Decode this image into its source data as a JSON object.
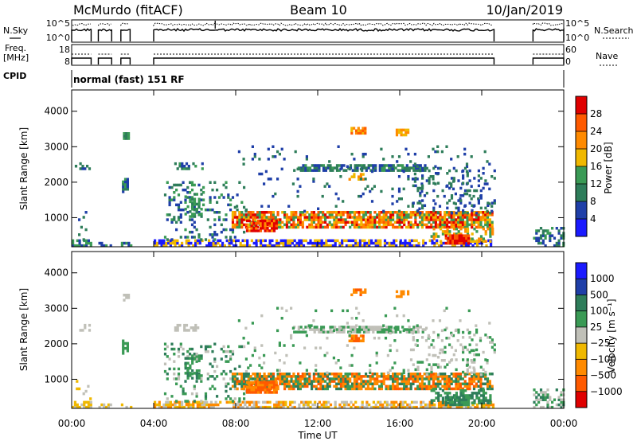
{
  "header": {
    "station": "McMurdo (fitACF)",
    "beam": "Beam 10",
    "date": "10/Jan/2019"
  },
  "side_labels": {
    "nsky": "N.Sky",
    "nsearch": "N.Search",
    "freq_line1": "Freq.",
    "freq_line2": "[MHz]",
    "nave": "Nave",
    "cpid": "CPID"
  },
  "panel_ticks": {
    "noise_left_hi": "10^5",
    "noise_left_lo": "10^0",
    "noise_right_hi": "10^5",
    "noise_right_lo": "10^0",
    "freq_left_hi": "18",
    "freq_left_lo": "8",
    "freq_right_hi": "60",
    "freq_right_lo": "0"
  },
  "cpid_text": "normal (fast) 151 RF",
  "colors": {
    "power": [
      "#1a1aff",
      "#1f3fa8",
      "#2e7d5a",
      "#3a9a55",
      "#f0b800",
      "#ff8a00",
      "#ff5a00",
      "#e00000"
    ],
    "velocity": [
      "#e00000",
      "#ff5a00",
      "#ff8a00",
      "#f0b800",
      "#c0c0b8",
      "#3a9a55",
      "#2e7d5a",
      "#1f3fa8",
      "#1a1aff"
    ]
  },
  "chart_data": [
    {
      "type": "heatmap",
      "name": "power",
      "ylabel": "Slant Range [km]",
      "ylim": [
        180,
        4600
      ],
      "yticks": [
        "1000",
        "2000",
        "3000",
        "4000"
      ],
      "xticks": [
        "00:00",
        "04:00",
        "08:00",
        "12:00",
        "16:00",
        "20:00",
        "00:00"
      ],
      "colorbar_label": "Power [dB]",
      "colorbar_ticks": [
        "4",
        "8",
        "12",
        "16",
        "20",
        "24",
        "28"
      ],
      "data_windows_hours": [
        [
          0.0,
          0.95
        ],
        [
          1.3,
          1.95
        ],
        [
          2.4,
          2.85
        ],
        [
          4.0,
          20.6
        ],
        [
          22.5,
          24.0
        ]
      ]
    },
    {
      "type": "heatmap",
      "name": "velocity",
      "ylabel": "Slant Range [km]",
      "ylim": [
        180,
        4600
      ],
      "yticks": [
        "1000",
        "2000",
        "3000",
        "4000"
      ],
      "xticks": [
        "00:00",
        "04:00",
        "08:00",
        "12:00",
        "16:00",
        "20:00",
        "00:00"
      ],
      "xlabel": "Time UT",
      "colorbar_label": "Velocity [m s⁻¹]",
      "colorbar_ticks": [
        "1000",
        "500",
        "100",
        "25",
        "−25",
        "−100",
        "−500",
        "−1000"
      ],
      "data_windows_hours": [
        [
          0.0,
          0.95
        ],
        [
          1.3,
          1.95
        ],
        [
          2.4,
          2.85
        ],
        [
          4.0,
          20.6
        ],
        [
          22.5,
          24.0
        ]
      ]
    }
  ]
}
